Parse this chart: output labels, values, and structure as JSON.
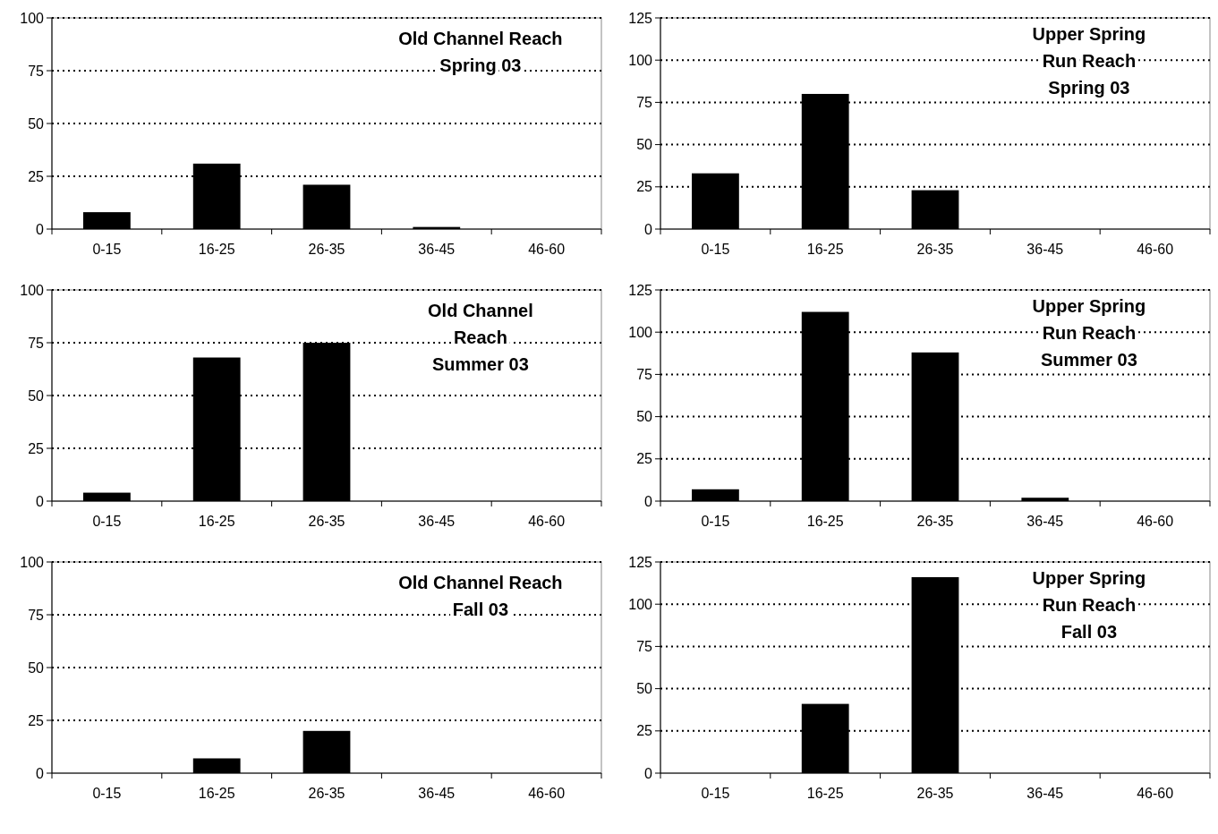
{
  "chart_data": [
    {
      "type": "bar",
      "title": "Old Channel Reach\nSpring 03",
      "categories": [
        "0-15",
        "16-25",
        "26-35",
        "36-45",
        "46-60"
      ],
      "values": [
        8,
        31,
        21,
        1,
        0
      ],
      "color": "#000000",
      "ylim": [
        0,
        100
      ],
      "yticks": [
        0,
        25,
        50,
        75,
        100
      ],
      "grid": "y"
    },
    {
      "type": "bar",
      "title": "Upper Spring\nRun Reach\nSpring 03",
      "categories": [
        "0-15",
        "16-25",
        "26-35",
        "36-45",
        "46-60"
      ],
      "values": [
        33,
        80,
        23,
        0,
        0
      ],
      "color": "#000000",
      "ylim": [
        0,
        125
      ],
      "yticks": [
        0,
        25,
        50,
        75,
        100,
        125
      ],
      "grid": "y"
    },
    {
      "type": "bar",
      "title": "Old Channel\nReach\nSummer 03",
      "categories": [
        "0-15",
        "16-25",
        "26-35",
        "36-45",
        "46-60"
      ],
      "values": [
        4,
        68,
        75,
        0,
        0
      ],
      "color": "#000000",
      "ylim": [
        0,
        100
      ],
      "yticks": [
        0,
        25,
        50,
        75,
        100
      ],
      "grid": "y"
    },
    {
      "type": "bar",
      "title": "Upper Spring\nRun Reach\nSummer 03",
      "categories": [
        "0-15",
        "16-25",
        "26-35",
        "36-45",
        "46-60"
      ],
      "values": [
        7,
        112,
        88,
        2,
        0
      ],
      "color": "#000000",
      "ylim": [
        0,
        125
      ],
      "yticks": [
        0,
        25,
        50,
        75,
        100,
        125
      ],
      "grid": "y"
    },
    {
      "type": "bar",
      "title": "Old Channel Reach\nFall 03",
      "categories": [
        "0-15",
        "16-25",
        "26-35",
        "36-45",
        "46-60"
      ],
      "values": [
        0,
        7,
        20,
        0,
        0
      ],
      "color": "#000000",
      "ylim": [
        0,
        100
      ],
      "yticks": [
        0,
        25,
        50,
        75,
        100
      ],
      "grid": "y"
    },
    {
      "type": "bar",
      "title": "Upper Spring\nRun Reach\nFall 03",
      "categories": [
        "0-15",
        "16-25",
        "26-35",
        "36-45",
        "46-60"
      ],
      "values": [
        0,
        41,
        116,
        0,
        0
      ],
      "color": "#000000",
      "ylim": [
        0,
        125
      ],
      "yticks": [
        0,
        25,
        50,
        75,
        100,
        125
      ],
      "grid": "y"
    }
  ]
}
